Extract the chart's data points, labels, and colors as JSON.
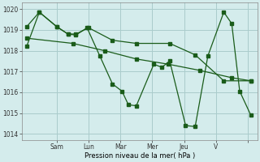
{
  "title": "",
  "xlabel": "Pression niveau de la mer( hPa )",
  "ylabel": "",
  "background_color": "#d4ecec",
  "grid_color": "#aacccc",
  "line_color": "#1a5c1a",
  "ylim": [
    1013.7,
    1020.3
  ],
  "xlim": [
    -0.1,
    7.3
  ],
  "yticks": [
    1014,
    1015,
    1016,
    1017,
    1018,
    1019,
    1020
  ],
  "xtick_positions": [
    1.0,
    2.0,
    3.0,
    4.0,
    5.0,
    6.0,
    7.0
  ],
  "xtick_labels": [
    "Sam",
    "Lun",
    "Mar",
    "Mer",
    "Jeu",
    "V",
    ""
  ],
  "series": [
    {
      "x": [
        0.05,
        0.45,
        1.0,
        1.35,
        1.6,
        1.95,
        2.35,
        2.75,
        3.05,
        3.25,
        3.5,
        4.05,
        4.3,
        4.55,
        5.05,
        5.35,
        5.75,
        6.25,
        6.5,
        6.75,
        7.1
      ],
      "y": [
        1018.2,
        1019.85,
        1019.15,
        1018.8,
        1018.75,
        1019.1,
        1017.75,
        1016.4,
        1016.05,
        1015.4,
        1015.35,
        1017.35,
        1017.2,
        1017.5,
        1014.4,
        1014.35,
        1017.75,
        1019.85,
        1019.3,
        1016.05,
        1014.9
      ]
    },
    {
      "x": [
        0.05,
        0.45,
        1.0,
        1.35,
        1.6,
        2.0,
        2.75,
        3.5,
        4.55,
        5.35,
        6.25,
        7.1
      ],
      "y": [
        1019.15,
        1019.85,
        1019.15,
        1018.8,
        1018.8,
        1019.1,
        1018.5,
        1018.35,
        1018.35,
        1017.8,
        1016.55,
        1016.55
      ]
    },
    {
      "x": [
        0.05,
        1.5,
        2.5,
        3.5,
        4.5,
        5.5,
        6.5,
        7.1
      ],
      "y": [
        1018.6,
        1018.35,
        1018.0,
        1017.6,
        1017.35,
        1017.05,
        1016.7,
        1016.55
      ]
    }
  ]
}
